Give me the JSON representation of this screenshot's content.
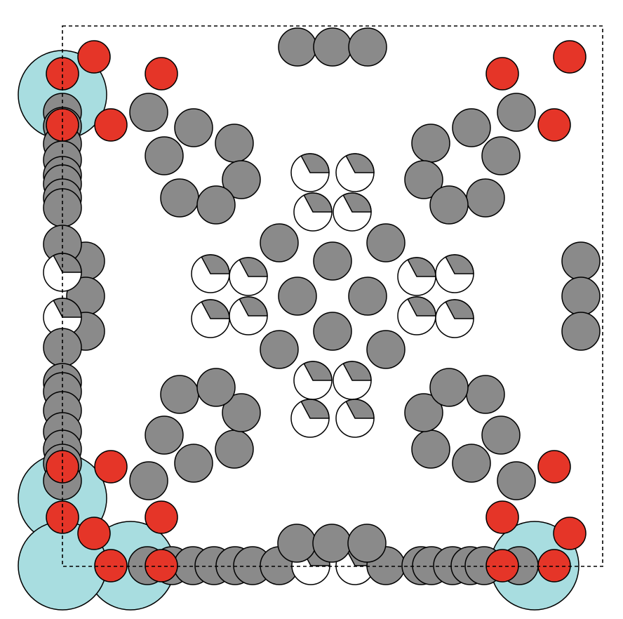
{
  "colors": {
    "background": "#ffffff",
    "frame": "#000000",
    "gray_disc": "#8a8a8a",
    "red_disc": "#e53528",
    "cyan_disc": "#a8dde0",
    "pie_white": "#ffffff",
    "pie_wedge": "#8a8a8a",
    "outline": "#000000"
  },
  "legend": null,
  "disc_kinds": [
    "gray",
    "red",
    "cyan",
    "pie"
  ],
  "frame_style": "dashed"
}
